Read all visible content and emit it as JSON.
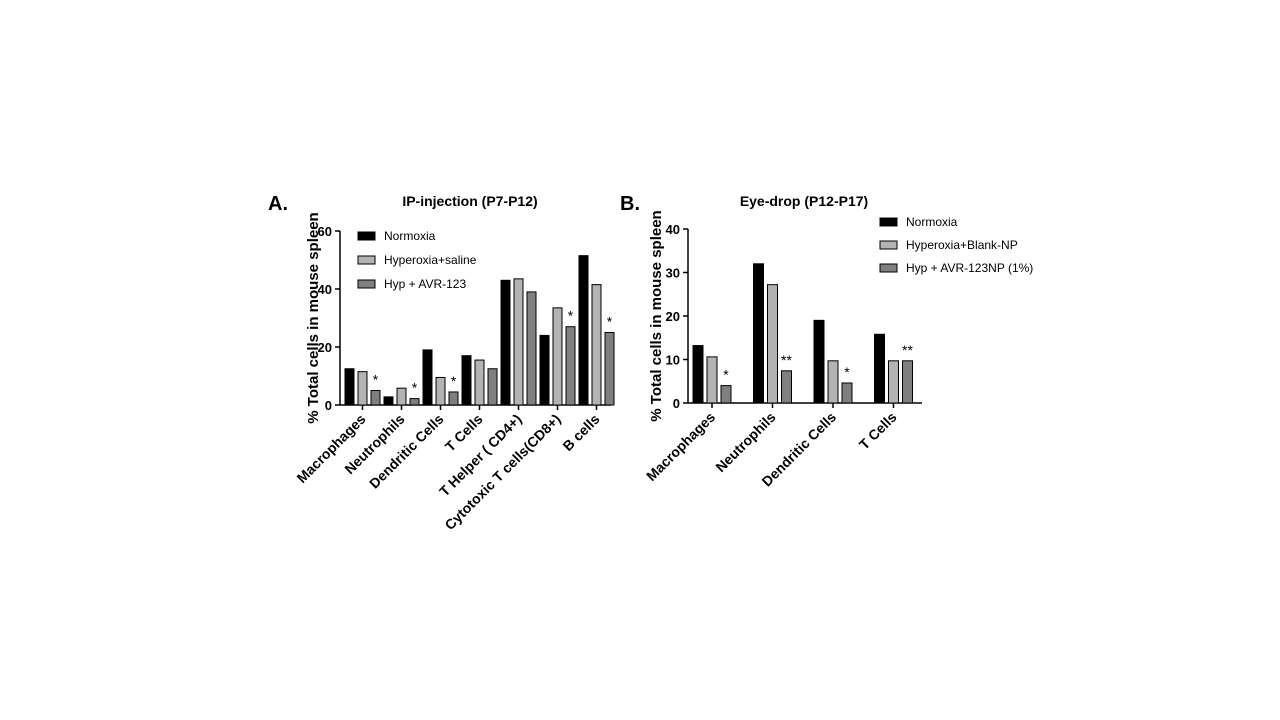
{
  "colors": {
    "Normoxia": "#000000",
    "series2": "#b3b3b3",
    "series3": "#7f7f7f",
    "stroke": "#000000"
  },
  "chart_data": [
    {
      "type": "bar",
      "panel": "A.",
      "title": "IP-injection (P7-P12)",
      "ylabel": "% Total cells in mouse spleen",
      "xlabel": "",
      "ylim": [
        0,
        60
      ],
      "yticks": [
        0,
        20,
        40,
        60
      ],
      "legend_position": "top-left",
      "categories": [
        "Macrophages",
        "Neutrophils",
        "Dendritic Cells",
        "T Cells",
        "T Helper ( CD4+)",
        "Cytotoxic T cells(CD8+)",
        "B cells"
      ],
      "series": [
        {
          "name": "Normoxia",
          "values": [
            12.5,
            2.8,
            19,
            17,
            43,
            24,
            51.5
          ]
        },
        {
          "name": "Hyperoxia+saline",
          "values": [
            11.5,
            5.8,
            9.5,
            15.5,
            43.5,
            33.5,
            41.5
          ]
        },
        {
          "name": "Hyp + AVR-123",
          "values": [
            5,
            2.2,
            4.5,
            12.5,
            39,
            27,
            25
          ]
        }
      ],
      "annotations": [
        "*",
        "*",
        "*",
        "",
        "",
        "*",
        "*"
      ]
    },
    {
      "type": "bar",
      "panel": "B.",
      "title": "Eye-drop (P12-P17)",
      "ylabel": "% Total cells in mouse spleen",
      "xlabel": "",
      "ylim": [
        0,
        40
      ],
      "yticks": [
        0,
        10,
        20,
        30,
        40
      ],
      "legend_position": "top-right",
      "categories": [
        "Macrophages",
        "Neutrophils",
        "Dendritic Cells",
        "T Cells"
      ],
      "series": [
        {
          "name": "Normoxia",
          "values": [
            13.2,
            32,
            19,
            15.8
          ]
        },
        {
          "name": "Hyperoxia+Blank-NP",
          "values": [
            10.6,
            27.2,
            9.7,
            9.7
          ]
        },
        {
          "name": "Hyp + AVR-123NP (1%)",
          "values": [
            4,
            7.4,
            4.6,
            9.7
          ]
        }
      ],
      "annotations": [
        "*",
        "**",
        "*",
        "**"
      ]
    }
  ]
}
